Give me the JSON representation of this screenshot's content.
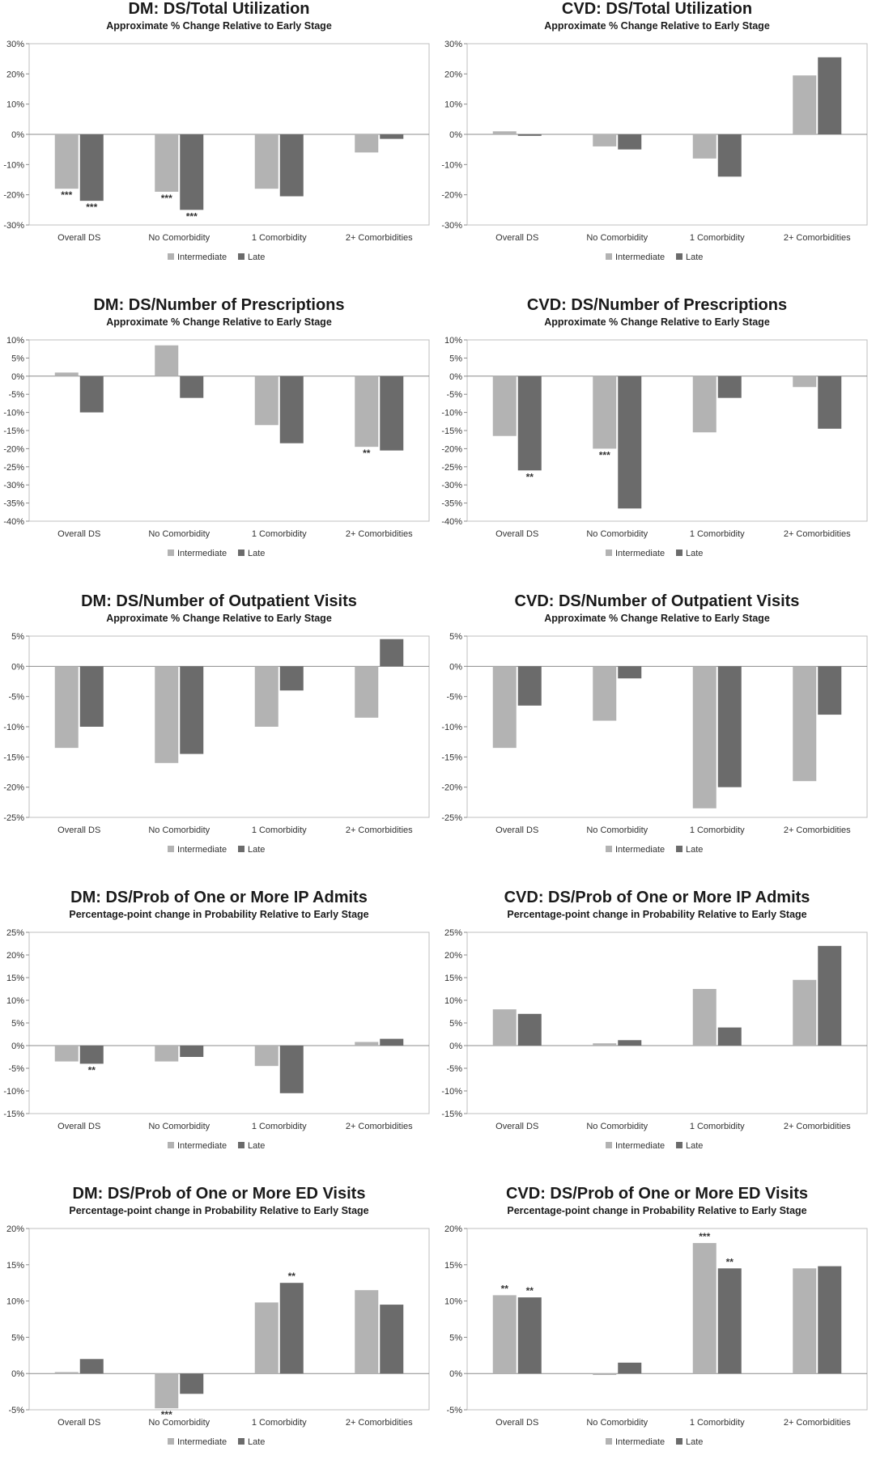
{
  "colors": {
    "intermediate": "#b3b3b3",
    "late": "#6b6b6b",
    "plot_border": "#bfbfbf",
    "axis": "#8c8c8c"
  },
  "chart_data": [
    {
      "type": "bar",
      "title": "DM: DS/Total Utilization",
      "subtitle": "Approximate % Change Relative to Early Stage",
      "categories": [
        "Overall DS",
        "No Comorbidity",
        "1 Comorbidity",
        "2+ Comorbidities"
      ],
      "series": [
        {
          "name": "Intermediate",
          "values": [
            -18,
            -19,
            -18,
            -6
          ],
          "annotations": [
            "***",
            "***",
            "",
            ""
          ]
        },
        {
          "name": "Late",
          "values": [
            -22,
            -25,
            -20.5,
            -1.5
          ],
          "annotations": [
            "***",
            "***",
            "",
            ""
          ]
        }
      ],
      "ylim": [
        -30,
        30
      ],
      "yticks": [
        30,
        20,
        10,
        0,
        -10,
        -20,
        -30
      ],
      "ytick_labels": [
        "30%",
        "20%",
        "10%",
        "0%",
        "-10%",
        "-20%",
        "-30%"
      ],
      "legend": "bottom"
    },
    {
      "type": "bar",
      "title": "CVD: DS/Total Utilization",
      "subtitle": "Approximate % Change Relative to Early Stage",
      "categories": [
        "Overall DS",
        "No Comorbidity",
        "1 Comorbidity",
        "2+ Comorbidities"
      ],
      "series": [
        {
          "name": "Intermediate",
          "values": [
            1,
            -4,
            -8,
            19.5
          ],
          "annotations": [
            "",
            "",
            "",
            ""
          ]
        },
        {
          "name": "Late",
          "values": [
            -0.5,
            -5,
            -14,
            25.5
          ],
          "annotations": [
            "",
            "",
            "",
            ""
          ]
        }
      ],
      "ylim": [
        -30,
        30
      ],
      "yticks": [
        30,
        20,
        10,
        0,
        -10,
        -20,
        -30
      ],
      "ytick_labels": [
        "30%",
        "20%",
        "10%",
        "0%",
        "-10%",
        "-20%",
        "-30%"
      ],
      "legend": "bottom"
    },
    {
      "type": "bar",
      "title": "DM: DS/Number of Prescriptions",
      "subtitle": "Approximate % Change Relative to Early Stage",
      "categories": [
        "Overall DS",
        "No Comorbidity",
        "1 Comorbidity",
        "2+ Comorbidities"
      ],
      "series": [
        {
          "name": "Intermediate",
          "values": [
            1,
            8.5,
            -13.5,
            -19.5
          ],
          "annotations": [
            "",
            "",
            "",
            "**"
          ]
        },
        {
          "name": "Late",
          "values": [
            -10,
            -6,
            -18.5,
            -20.5
          ],
          "annotations": [
            "",
            "",
            "",
            ""
          ]
        }
      ],
      "ylim": [
        -40,
        10
      ],
      "yticks": [
        10,
        5,
        0,
        -5,
        -10,
        -15,
        -20,
        -25,
        -30,
        -35,
        -40
      ],
      "ytick_labels": [
        "10%",
        "5%",
        "0%",
        "-5%",
        "-10%",
        "-15%",
        "-20%",
        "-25%",
        "-30%",
        "-35%",
        "-40%"
      ],
      "legend": "bottom"
    },
    {
      "type": "bar",
      "title": "CVD: DS/Number of Prescriptions",
      "subtitle": "Approximate % Change Relative to Early Stage",
      "categories": [
        "Overall DS",
        "No Comorbidity",
        "1 Comorbidity",
        "2+ Comorbidities"
      ],
      "series": [
        {
          "name": "Intermediate",
          "values": [
            -16.5,
            -20,
            -15.5,
            -3
          ],
          "annotations": [
            "",
            "***",
            "",
            ""
          ]
        },
        {
          "name": "Late",
          "values": [
            -26,
            -36.5,
            -6,
            -14.5
          ],
          "annotations": [
            "**",
            "",
            "",
            ""
          ]
        }
      ],
      "ylim": [
        -40,
        10
      ],
      "yticks": [
        10,
        5,
        0,
        -5,
        -10,
        -15,
        -20,
        -25,
        -30,
        -35,
        -40
      ],
      "ytick_labels": [
        "10%",
        "5%",
        "0%",
        "-5%",
        "-10%",
        "-15%",
        "-20%",
        "-25%",
        "-30%",
        "-35%",
        "-40%"
      ],
      "legend": "bottom"
    },
    {
      "type": "bar",
      "title": "DM: DS/Number of Outpatient Visits",
      "subtitle": "Approximate % Change Relative to Early Stage",
      "categories": [
        "Overall DS",
        "No Comorbidity",
        "1 Comorbidity",
        "2+ Comorbidities"
      ],
      "series": [
        {
          "name": "Intermediate",
          "values": [
            -13.5,
            -16,
            -10,
            -8.5
          ],
          "annotations": [
            "",
            "",
            "",
            ""
          ]
        },
        {
          "name": "Late",
          "values": [
            -10,
            -14.5,
            -4,
            4.5
          ],
          "annotations": [
            "",
            "",
            "",
            ""
          ]
        }
      ],
      "ylim": [
        -25,
        5
      ],
      "yticks": [
        5,
        0,
        -5,
        -10,
        -15,
        -20,
        -25
      ],
      "ytick_labels": [
        "5%",
        "0%",
        "-5%",
        "-10%",
        "-15%",
        "-20%",
        "-25%"
      ],
      "legend": "bottom"
    },
    {
      "type": "bar",
      "title": "CVD: DS/Number of Outpatient Visits",
      "subtitle": "Approximate % Change Relative to Early Stage",
      "categories": [
        "Overall DS",
        "No Comorbidity",
        "1 Comorbidity",
        "2+ Comorbidities"
      ],
      "series": [
        {
          "name": "Intermediate",
          "values": [
            -13.5,
            -9,
            -23.5,
            -19
          ],
          "annotations": [
            "",
            "",
            "",
            ""
          ]
        },
        {
          "name": "Late",
          "values": [
            -6.5,
            -2,
            -20,
            -8
          ],
          "annotations": [
            "",
            "",
            "",
            ""
          ]
        }
      ],
      "ylim": [
        -25,
        5
      ],
      "yticks": [
        5,
        0,
        -5,
        -10,
        -15,
        -20,
        -25
      ],
      "ytick_labels": [
        "5%",
        "0%",
        "-5%",
        "-10%",
        "-15%",
        "-20%",
        "-25%"
      ],
      "legend": "bottom"
    },
    {
      "type": "bar",
      "title": "DM: DS/Prob of One or More IP Admits",
      "subtitle": "Percentage-point change in Probability Relative to Early Stage",
      "categories": [
        "Overall DS",
        "No Comorbidity",
        "1 Comorbidity",
        "2+ Comorbidities"
      ],
      "series": [
        {
          "name": "Intermediate",
          "values": [
            -3.5,
            -3.5,
            -4.5,
            0.8
          ],
          "annotations": [
            "",
            "",
            "",
            ""
          ]
        },
        {
          "name": "Late",
          "values": [
            -4,
            -2.5,
            -10.5,
            1.5
          ],
          "annotations": [
            "**",
            "",
            "",
            ""
          ]
        }
      ],
      "ylim": [
        -15,
        25
      ],
      "yticks": [
        25,
        20,
        15,
        10,
        5,
        0,
        -5,
        -10,
        -15
      ],
      "ytick_labels": [
        "25%",
        "20%",
        "15%",
        "10%",
        "5%",
        "0%",
        "-5%",
        "-10%",
        "-15%"
      ],
      "legend": "bottom"
    },
    {
      "type": "bar",
      "title": "CVD: DS/Prob of One or More IP Admits",
      "subtitle": "Percentage-point change in Probability Relative to Early Stage",
      "categories": [
        "Overall DS",
        "No Comorbidity",
        "1 Comorbidity",
        "2+ Comorbidities"
      ],
      "series": [
        {
          "name": "Intermediate",
          "values": [
            8,
            0.5,
            12.5,
            14.5
          ],
          "annotations": [
            "",
            "",
            "",
            ""
          ]
        },
        {
          "name": "Late",
          "values": [
            7,
            1.2,
            4,
            22
          ],
          "annotations": [
            "",
            "",
            "",
            ""
          ]
        }
      ],
      "ylim": [
        -15,
        25
      ],
      "yticks": [
        25,
        20,
        15,
        10,
        5,
        0,
        -5,
        -10,
        -15
      ],
      "ytick_labels": [
        "25%",
        "20%",
        "15%",
        "10%",
        "5%",
        "0%",
        "-5%",
        "-10%",
        "-15%"
      ],
      "legend": "bottom"
    },
    {
      "type": "bar",
      "title": "DM: DS/Prob of One or More ED Visits",
      "subtitle": "Percentage-point change in Probability Relative to Early Stage",
      "categories": [
        "Overall DS",
        "No Comorbidity",
        "1 Comorbidity",
        "2+ Comorbidities"
      ],
      "series": [
        {
          "name": "Intermediate",
          "values": [
            0.2,
            -4.8,
            9.8,
            11.5
          ],
          "annotations": [
            "",
            "***",
            "",
            ""
          ]
        },
        {
          "name": "Late",
          "values": [
            2,
            -2.8,
            12.5,
            9.5
          ],
          "annotations": [
            "",
            "",
            "**",
            ""
          ]
        }
      ],
      "ylim": [
        -5,
        20
      ],
      "yticks": [
        20,
        15,
        10,
        5,
        0,
        -5
      ],
      "ytick_labels": [
        "20%",
        "15%",
        "10%",
        "5%",
        "0%",
        "-5%"
      ],
      "legend": "bottom"
    },
    {
      "type": "bar",
      "title": "CVD: DS/Prob of One or More ED Visits",
      "subtitle": "Percentage-point change in Probability Relative to Early Stage",
      "categories": [
        "Overall DS",
        "No Comorbidity",
        "1 Comorbidity",
        "2+ Comorbidities"
      ],
      "series": [
        {
          "name": "Intermediate",
          "values": [
            10.8,
            -0.2,
            18,
            14.5
          ],
          "annotations": [
            "**",
            "",
            "***",
            ""
          ]
        },
        {
          "name": "Late",
          "values": [
            10.5,
            1.5,
            14.5,
            14.8
          ],
          "annotations": [
            "**",
            "",
            "**",
            ""
          ]
        }
      ],
      "ylim": [
        -5,
        20
      ],
      "yticks": [
        20,
        15,
        10,
        5,
        0,
        -5
      ],
      "ytick_labels": [
        "20%",
        "15%",
        "10%",
        "5%",
        "0%",
        "-5%"
      ],
      "legend": "bottom"
    }
  ]
}
